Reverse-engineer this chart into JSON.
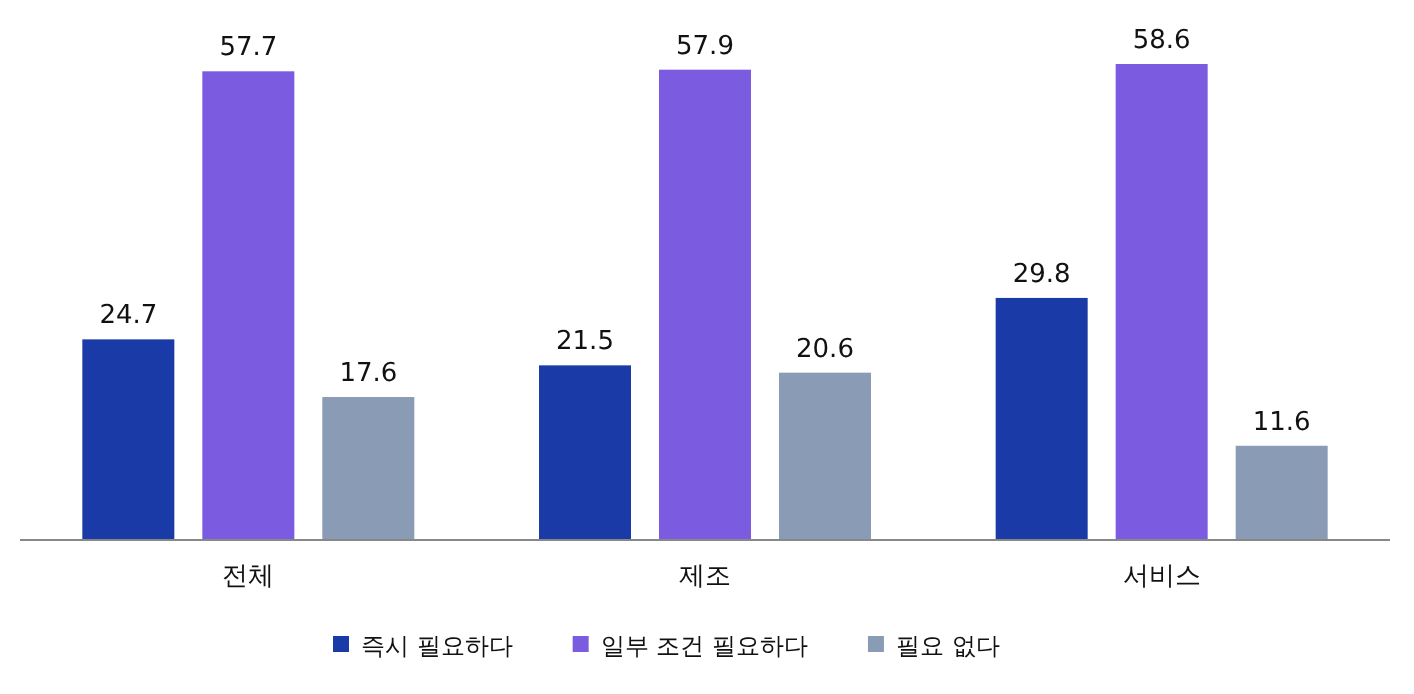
{
  "chart_data": {
    "type": "bar",
    "categories": [
      "전체",
      "제조",
      "서비스"
    ],
    "series": [
      {
        "name": "즉시 필요하다",
        "color": "#1a3aa8",
        "values": [
          24.7,
          21.5,
          29.8
        ]
      },
      {
        "name": "일부 조건 필요하다",
        "color": "#7b5ce0",
        "values": [
          57.7,
          57.9,
          58.6
        ]
      },
      {
        "name": "필요 없다",
        "color": "#8a9bb5",
        "values": [
          17.6,
          20.6,
          11.6
        ]
      }
    ],
    "data_labels": true,
    "legend": "bottom"
  }
}
